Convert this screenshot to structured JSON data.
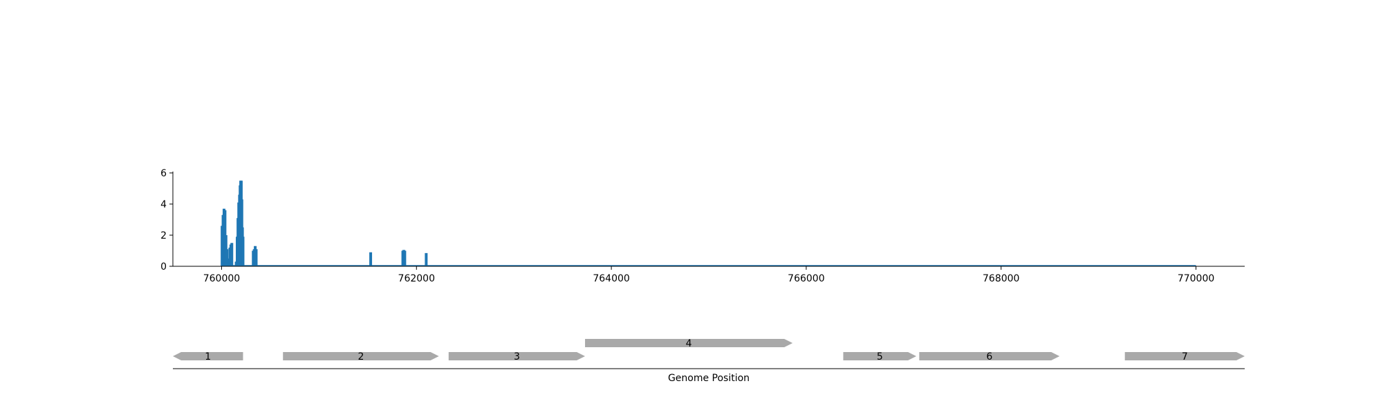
{
  "chart_data": [
    {
      "type": "bar",
      "xlim": [
        759500,
        770500
      ],
      "ylim": [
        0,
        6
      ],
      "x_ticks": [
        760000,
        762000,
        764000,
        766000,
        768000,
        770000
      ],
      "x_tick_labels": [
        "760000",
        "762000",
        "764000",
        "766000",
        "768000",
        "770000"
      ],
      "y_ticks": [
        0,
        2,
        4,
        6
      ],
      "y_tick_labels": [
        "0",
        "2",
        "4",
        "6"
      ],
      "baseline_range": [
        760000,
        770000
      ],
      "color": "#1f77b4",
      "points": [
        {
          "x": 760005,
          "y": 2.6
        },
        {
          "x": 760015,
          "y": 3.3
        },
        {
          "x": 760025,
          "y": 3.7
        },
        {
          "x": 760035,
          "y": 3.6
        },
        {
          "x": 760045,
          "y": 2.0
        },
        {
          "x": 760055,
          "y": 1.1
        },
        {
          "x": 760070,
          "y": 0.5
        },
        {
          "x": 760085,
          "y": 1.2
        },
        {
          "x": 760095,
          "y": 1.4
        },
        {
          "x": 760105,
          "y": 1.5
        },
        {
          "x": 760150,
          "y": 0.3
        },
        {
          "x": 760160,
          "y": 1.9
        },
        {
          "x": 760168,
          "y": 3.1
        },
        {
          "x": 760176,
          "y": 4.1
        },
        {
          "x": 760184,
          "y": 4.6
        },
        {
          "x": 760190,
          "y": 5.2
        },
        {
          "x": 760196,
          "y": 5.5
        },
        {
          "x": 760202,
          "y": 5.5
        },
        {
          "x": 760208,
          "y": 4.3
        },
        {
          "x": 760214,
          "y": 2.5
        },
        {
          "x": 760220,
          "y": 1.9
        },
        {
          "x": 760325,
          "y": 1.0
        },
        {
          "x": 760335,
          "y": 1.1
        },
        {
          "x": 760345,
          "y": 1.3
        },
        {
          "x": 760355,
          "y": 1.1
        },
        {
          "x": 761530,
          "y": 0.9
        },
        {
          "x": 761860,
          "y": 1.0
        },
        {
          "x": 761870,
          "y": 1.05
        },
        {
          "x": 761880,
          "y": 1.0
        },
        {
          "x": 762100,
          "y": 0.85
        }
      ]
    },
    {
      "type": "gene-track",
      "xlabel": "Genome Position",
      "genes": [
        {
          "label": "1",
          "start": 759500,
          "end": 760220,
          "strand": "-",
          "row": 0
        },
        {
          "label": "2",
          "start": 760630,
          "end": 762230,
          "strand": "+",
          "row": 0
        },
        {
          "label": "3",
          "start": 762330,
          "end": 763730,
          "strand": "+",
          "row": 0
        },
        {
          "label": "4",
          "start": 763730,
          "end": 765860,
          "strand": "+",
          "row": 1
        },
        {
          "label": "5",
          "start": 766380,
          "end": 767130,
          "strand": "+",
          "row": 0
        },
        {
          "label": "6",
          "start": 767160,
          "end": 768600,
          "strand": "+",
          "row": 0
        },
        {
          "label": "7",
          "start": 769270,
          "end": 770500,
          "strand": "+",
          "row": 0
        }
      ],
      "color": "#a9a9a9"
    }
  ]
}
